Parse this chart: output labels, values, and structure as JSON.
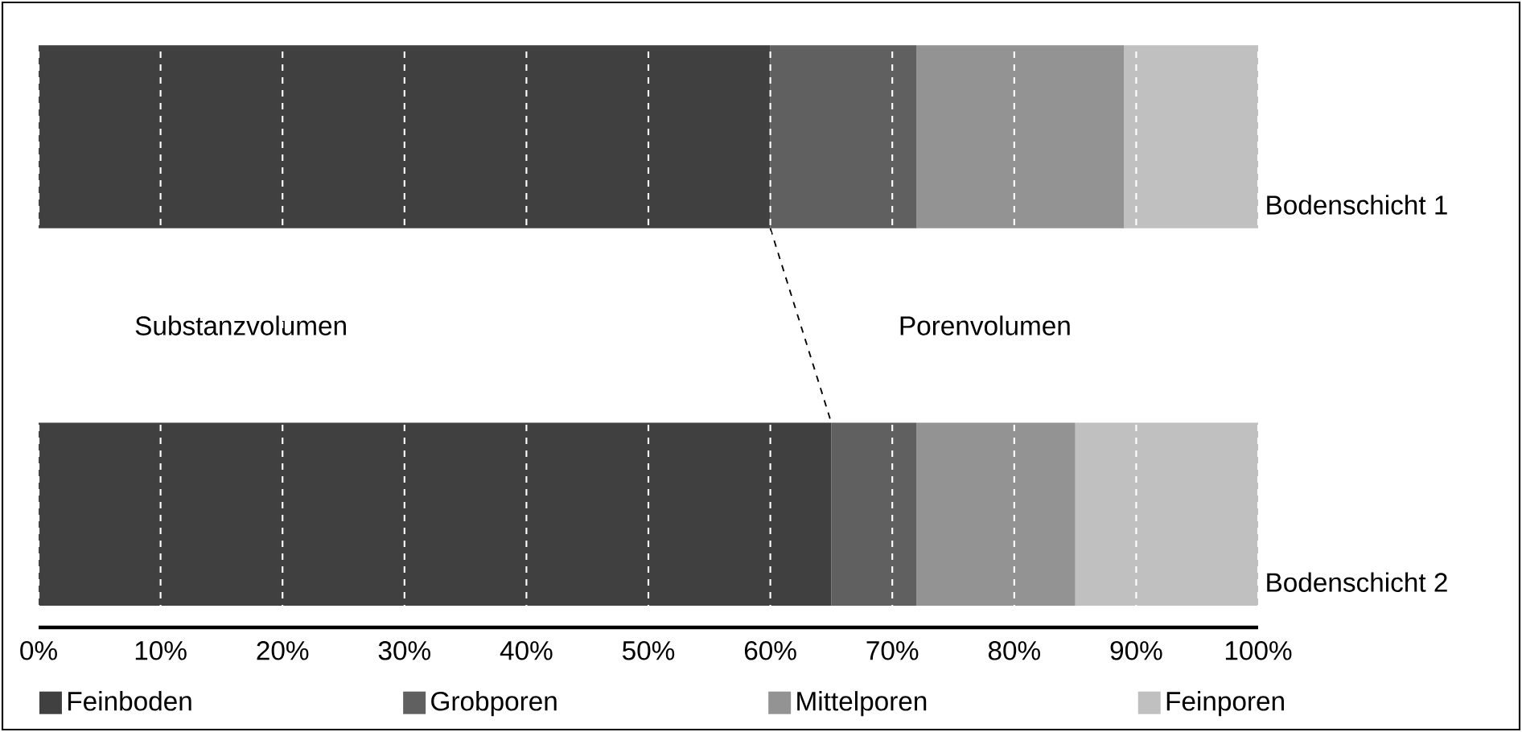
{
  "chart_data": {
    "type": "bar",
    "orientation": "horizontal",
    "stacked": true,
    "categories": [
      "Bodenschicht 1",
      "Bodenschicht 2"
    ],
    "series": [
      {
        "name": "Feinboden",
        "color": "#404040",
        "values": [
          60,
          65
        ]
      },
      {
        "name": "Grobporen",
        "color": "#606060",
        "values": [
          12,
          7
        ]
      },
      {
        "name": "Mittelporen",
        "color": "#939393",
        "values": [
          17,
          13
        ]
      },
      {
        "name": "Feinporen",
        "color": "#c0c0c0",
        "values": [
          11,
          15
        ]
      }
    ],
    "xlim": [
      0,
      100
    ],
    "xticks": [
      {
        "value": 0,
        "label": "0%"
      },
      {
        "value": 10,
        "label": "10%"
      },
      {
        "value": 20,
        "label": "20%"
      },
      {
        "value": 30,
        "label": "30%"
      },
      {
        "value": 40,
        "label": "40%"
      },
      {
        "value": 50,
        "label": "50%"
      },
      {
        "value": 60,
        "label": "60%"
      },
      {
        "value": 70,
        "label": "70%"
      },
      {
        "value": 80,
        "label": "80%"
      },
      {
        "value": 90,
        "label": "90%"
      },
      {
        "value": 100,
        "label": "100%"
      }
    ],
    "grid": "x",
    "legend": "bottom",
    "annotations": [
      "Substanzvolumen",
      "Porenvolumen"
    ]
  }
}
